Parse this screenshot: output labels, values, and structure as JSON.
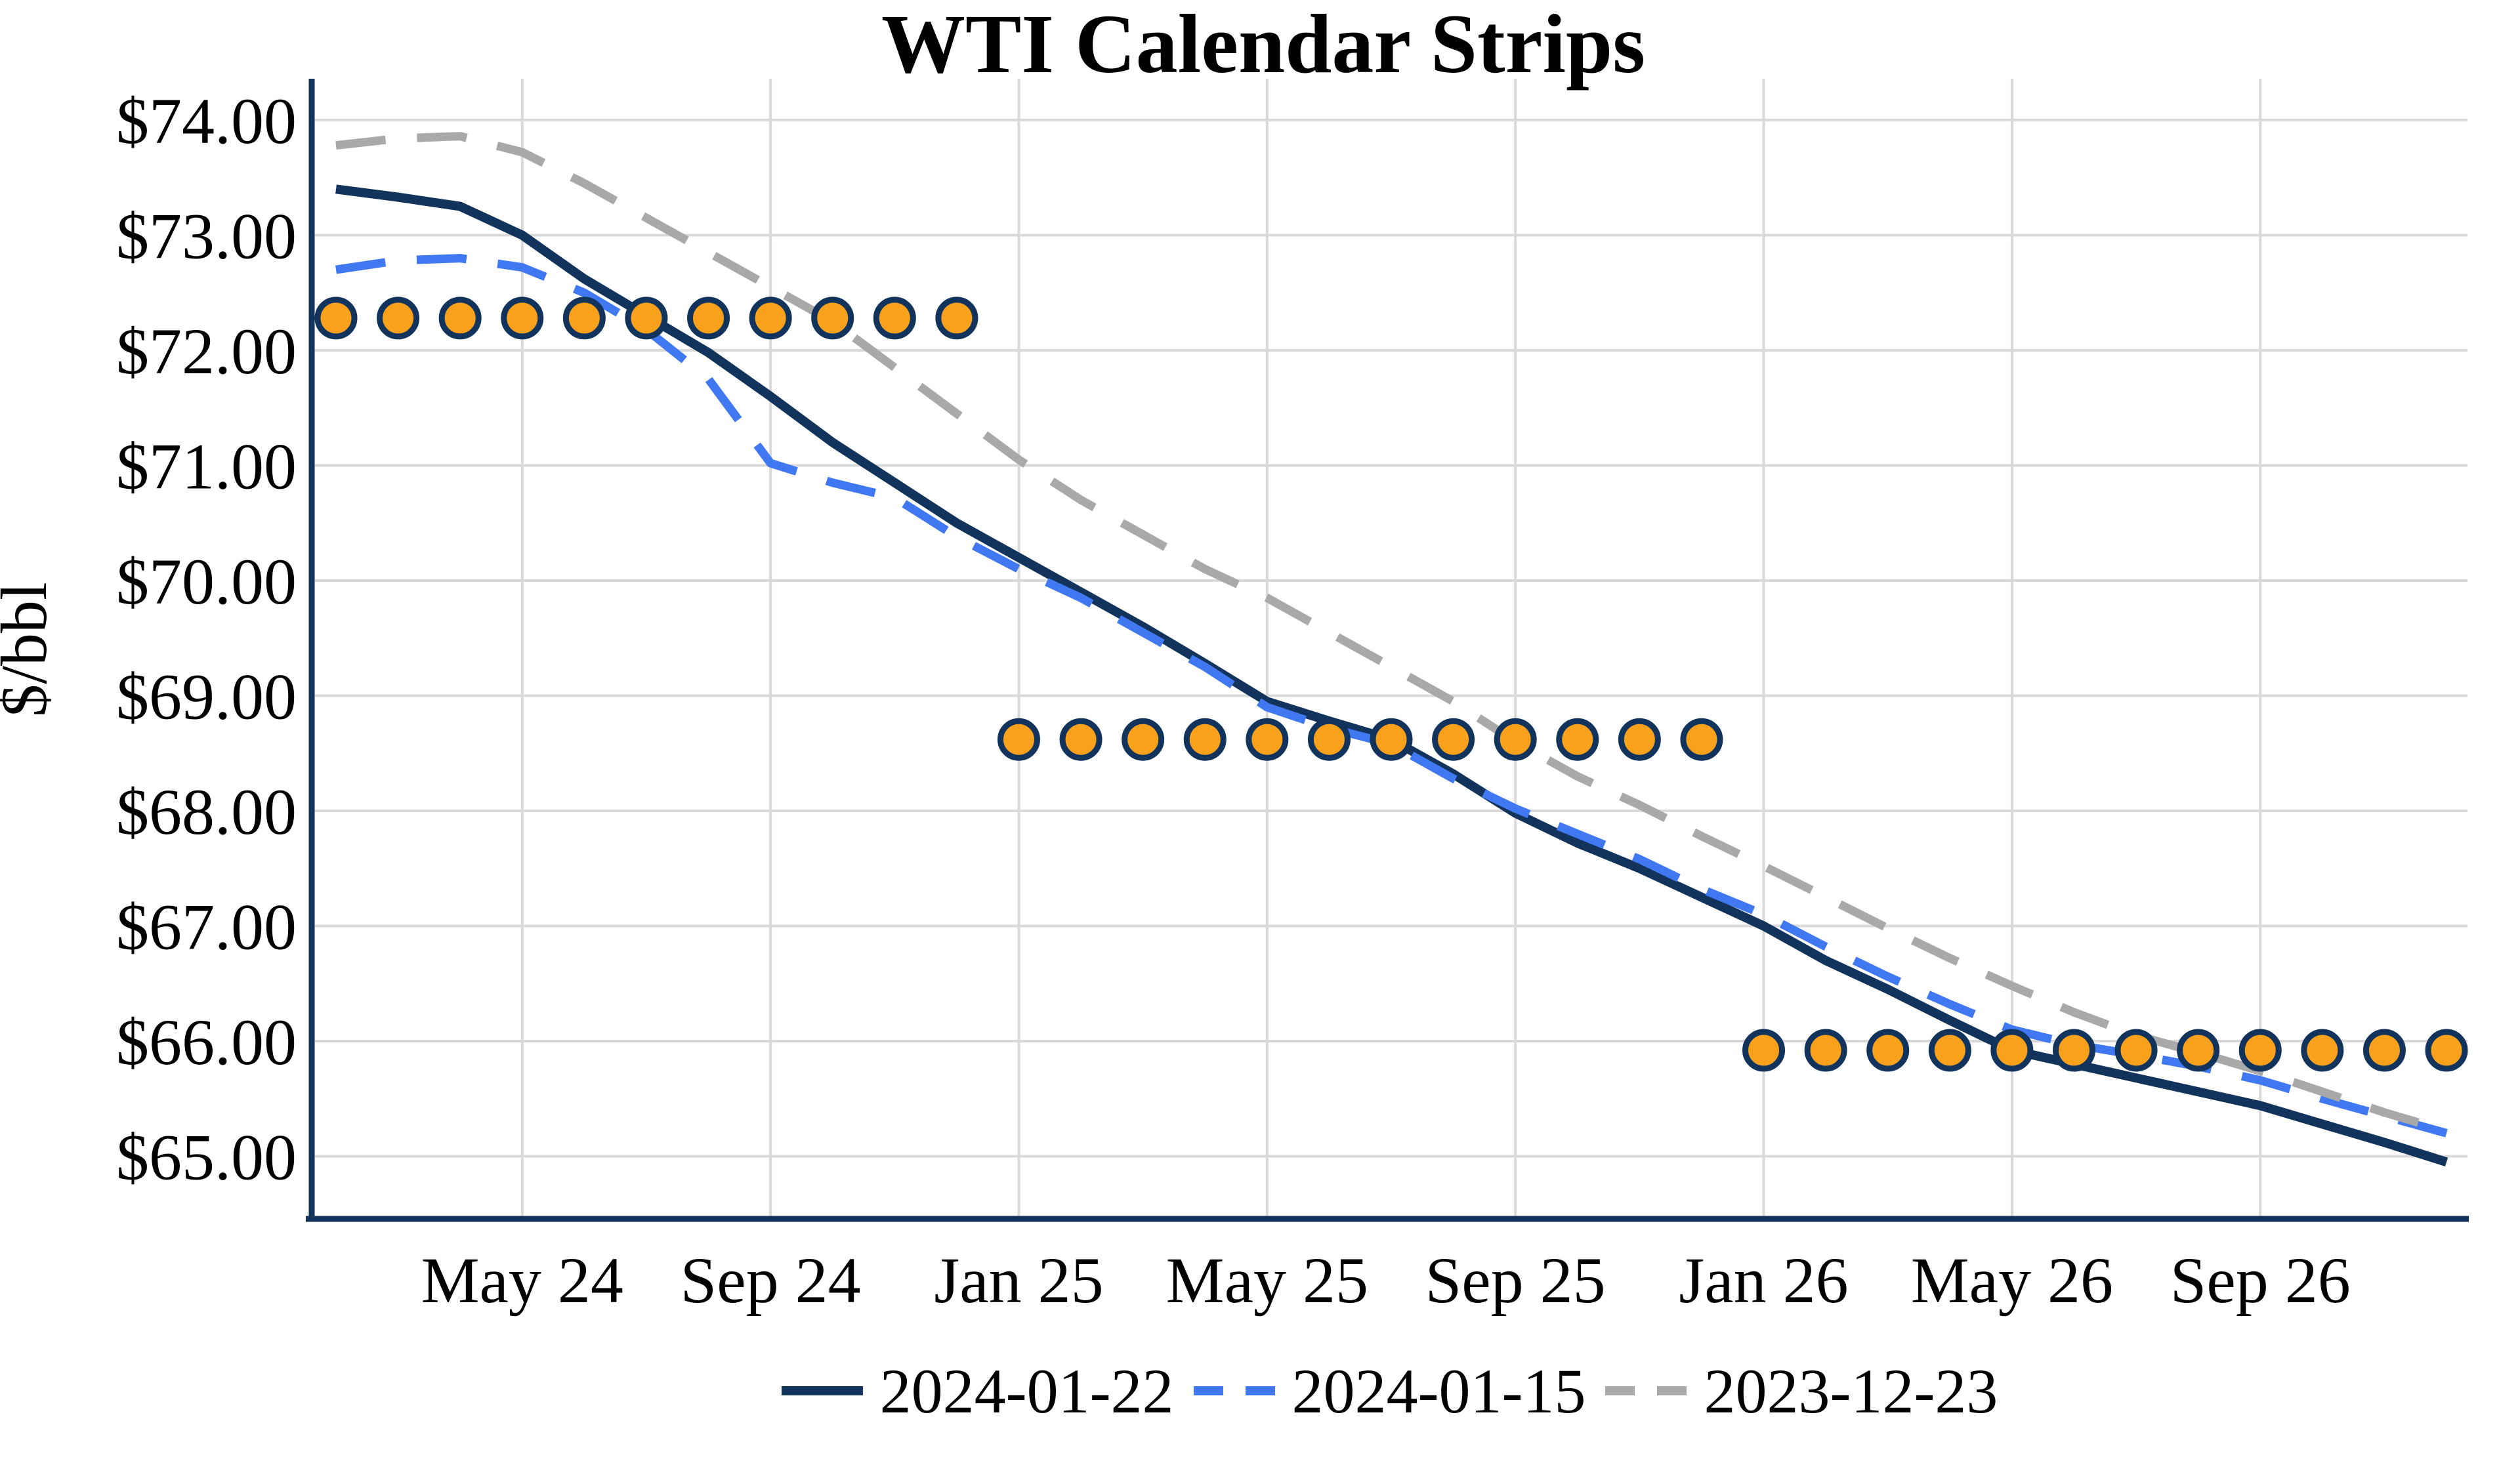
{
  "chart_data": {
    "type": "line",
    "title": "WTI Calendar Strips",
    "ylabel": "$/bbl",
    "x": [
      "Feb 24",
      "Mar 24",
      "Apr 24",
      "May 24",
      "Jun 24",
      "Jul 24",
      "Aug 24",
      "Sep 24",
      "Oct 24",
      "Nov 24",
      "Dec 24",
      "Jan 25",
      "Feb 25",
      "Mar 25",
      "Apr 25",
      "May 25",
      "Jun 25",
      "Jul 25",
      "Aug 25",
      "Sep 25",
      "Oct 25",
      "Nov 25",
      "Dec 25",
      "Jan 26",
      "Feb 26",
      "Mar 26",
      "Apr 26",
      "May 26",
      "Jun 26",
      "Jul 26",
      "Aug 26",
      "Sep 26",
      "Oct 26",
      "Nov 26",
      "Dec 26"
    ],
    "x_ticks": [
      {
        "index": 3,
        "label": "May 24"
      },
      {
        "index": 7,
        "label": "Sep 24"
      },
      {
        "index": 11,
        "label": "Jan 25"
      },
      {
        "index": 15,
        "label": "May 25"
      },
      {
        "index": 19,
        "label": "Sep 25"
      },
      {
        "index": 23,
        "label": "Jan 26"
      },
      {
        "index": 27,
        "label": "May 26"
      },
      {
        "index": 31,
        "label": "Sep 26"
      }
    ],
    "y_ticks": [
      {
        "value": 65,
        "label": "$65.00"
      },
      {
        "value": 66,
        "label": "$66.00"
      },
      {
        "value": 67,
        "label": "$67.00"
      },
      {
        "value": 68,
        "label": "$68.00"
      },
      {
        "value": 69,
        "label": "$69.00"
      },
      {
        "value": 70,
        "label": "$70.00"
      },
      {
        "value": 71,
        "label": "$71.00"
      },
      {
        "value": 72,
        "label": "$72.00"
      },
      {
        "value": 73,
        "label": "$73.00"
      },
      {
        "value": 74,
        "label": "$74.00"
      }
    ],
    "ylim": [
      64.45,
      74.35
    ],
    "grid": true,
    "legend_position": "bottom-center",
    "series": [
      {
        "name": "2024-01-22",
        "style": "solid",
        "color": "#12335B",
        "values": [
          73.4,
          73.33,
          73.25,
          73.0,
          72.62,
          72.3,
          71.98,
          71.6,
          71.2,
          70.85,
          70.5,
          70.2,
          69.9,
          69.6,
          69.28,
          68.95,
          68.78,
          68.62,
          68.32,
          67.98,
          67.72,
          67.5,
          67.25,
          67.0,
          66.7,
          66.45,
          66.18,
          65.92,
          65.8,
          65.68,
          65.56,
          65.44,
          65.28,
          65.12,
          64.95
        ]
      },
      {
        "name": "2024-01-15",
        "style": "dashed",
        "color": "#3F78F1",
        "values": [
          72.7,
          72.78,
          72.8,
          72.72,
          72.5,
          72.18,
          71.75,
          71.02,
          70.85,
          70.72,
          70.38,
          70.1,
          69.85,
          69.55,
          69.25,
          68.9,
          68.72,
          68.58,
          68.28,
          68.02,
          67.8,
          67.58,
          67.32,
          67.1,
          66.82,
          66.56,
          66.32,
          66.1,
          65.97,
          65.88,
          65.78,
          65.66,
          65.5,
          65.35,
          65.2
        ]
      },
      {
        "name": "2023-12-23",
        "style": "dashed",
        "color": "#A9A9A9",
        "values": [
          73.78,
          73.84,
          73.86,
          73.72,
          73.45,
          73.15,
          72.85,
          72.55,
          72.25,
          71.85,
          71.45,
          71.05,
          70.7,
          70.4,
          70.1,
          69.85,
          69.55,
          69.25,
          68.95,
          68.6,
          68.3,
          68.05,
          67.78,
          67.52,
          67.25,
          66.98,
          66.72,
          66.48,
          66.25,
          66.05,
          65.9,
          65.74,
          65.56,
          65.38,
          65.22
        ]
      }
    ],
    "markers": {
      "shape": "circle",
      "fill": "#F9A11B",
      "ring": "#12335B",
      "strips": [
        {
          "value": 72.28,
          "from_index": 0,
          "to_index": 10
        },
        {
          "value": 68.62,
          "from_index": 11,
          "to_index": 22
        },
        {
          "value": 65.92,
          "from_index": 23,
          "to_index": 34
        }
      ]
    },
    "colors": {
      "background": "#FFFFFF",
      "gridline": "#D9D9D9",
      "axis": "#12335B",
      "text": "#000000"
    }
  }
}
